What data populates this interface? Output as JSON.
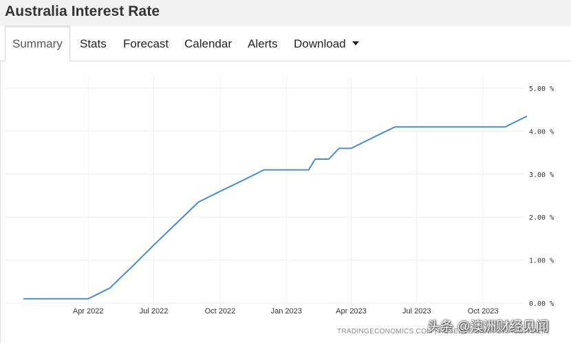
{
  "header": {
    "title": "Australia Interest Rate"
  },
  "tabs": [
    {
      "label": "Summary",
      "active": true
    },
    {
      "label": "Stats"
    },
    {
      "label": "Forecast"
    },
    {
      "label": "Calendar"
    },
    {
      "label": "Alerts"
    },
    {
      "label": "Download",
      "has_dropdown": true
    }
  ],
  "chart_data": {
    "type": "line",
    "x_ticks": [
      "Apr 2022",
      "Jul 2022",
      "Oct 2022",
      "Jan 2023",
      "Apr 2023",
      "Jul 2023",
      "Oct 2023"
    ],
    "y_ticks": [
      "0.00 %",
      "1.00 %",
      "2.00 %",
      "3.00 %",
      "4.00 %",
      "5.00 %"
    ],
    "ylim": [
      0,
      5
    ],
    "y_axis_position": "right",
    "grid": true,
    "line_color": "#4a8bc9",
    "series": [
      {
        "x": [
          "2022-01-01",
          "2022-02-01",
          "2022-03-01",
          "2022-04-01",
          "2022-05-01",
          "2022-06-01",
          "2022-07-01",
          "2022-08-01",
          "2022-09-01",
          "2022-10-01",
          "2022-11-01",
          "2022-12-01",
          "2023-01-01",
          "2023-02-01",
          "2023-02-10",
          "2023-03-01",
          "2023-03-15",
          "2023-04-01",
          "2023-05-01",
          "2023-06-01",
          "2023-07-01",
          "2023-08-01",
          "2023-09-01",
          "2023-10-01",
          "2023-11-01",
          "2023-12-01"
        ],
        "values": [
          0.1,
          0.1,
          0.1,
          0.1,
          0.35,
          0.85,
          1.35,
          1.85,
          2.35,
          2.6,
          2.85,
          3.1,
          3.1,
          3.1,
          3.35,
          3.35,
          3.6,
          3.6,
          3.85,
          4.1,
          4.1,
          4.1,
          4.1,
          4.1,
          4.1,
          4.35
        ]
      }
    ]
  },
  "footer": {
    "credit": "TRADINGECONOMICS.COM | RESERVE BANK OF AUSTRALIA",
    "watermark": "头条 @澳洲财经见闻"
  }
}
